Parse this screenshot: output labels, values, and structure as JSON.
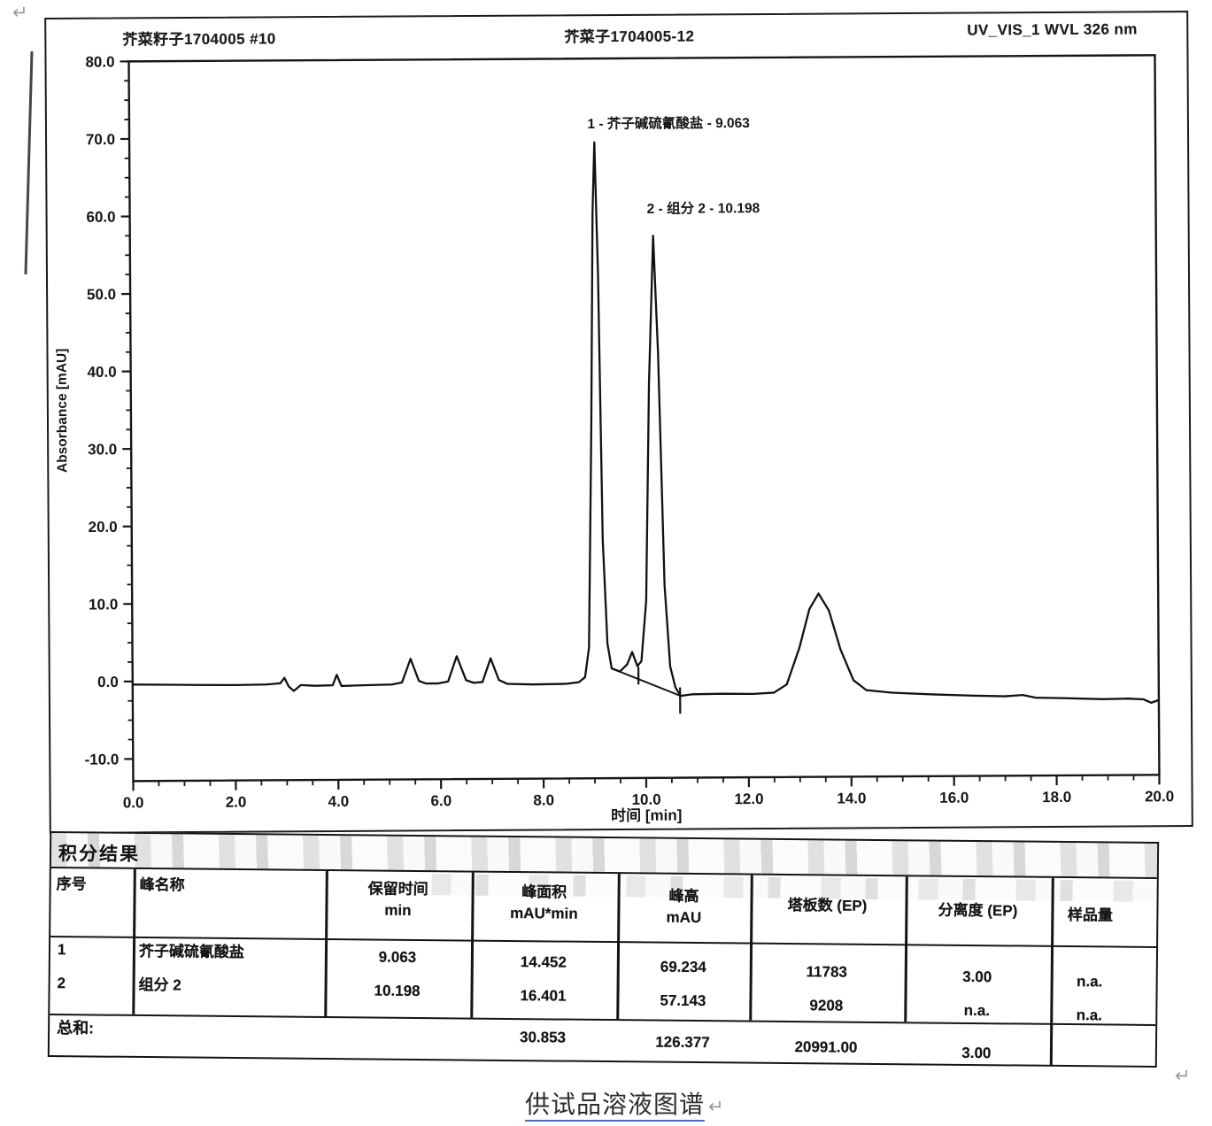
{
  "page": {
    "return_mark": "↵",
    "caption": "供试品溶液图谱"
  },
  "chart": {
    "header_left": "芥菜籽子1704005 #10",
    "header_center": "芥菜子1704005-12",
    "header_right": "UV_VIS_1 WVL 326 nm"
  },
  "chart_data": {
    "type": "line",
    "title": "供试品溶液图谱",
    "xlabel": "时间 [min]",
    "ylabel": "Absorbance [mAU]",
    "xlim": [
      0,
      20
    ],
    "ylim": [
      -10,
      80
    ],
    "x_minor_step": 0.5,
    "y_minor_step": 2.5,
    "x_ticks": [
      {
        "v": 0,
        "label": "0.0"
      },
      {
        "v": 2,
        "label": "2.0"
      },
      {
        "v": 4,
        "label": "4.0"
      },
      {
        "v": 6,
        "label": "6.0"
      },
      {
        "v": 8,
        "label": "8.0"
      },
      {
        "v": 10,
        "label": "10.0"
      },
      {
        "v": 12,
        "label": "12.0"
      },
      {
        "v": 14,
        "label": "14.0"
      },
      {
        "v": 16,
        "label": "16.0"
      },
      {
        "v": 18,
        "label": "18.0"
      },
      {
        "v": 20,
        "label": "20.0"
      }
    ],
    "y_ticks": [
      {
        "v": 80,
        "label": "80.0"
      },
      {
        "v": 70,
        "label": "70.0"
      },
      {
        "v": 60,
        "label": "60.0"
      },
      {
        "v": 50,
        "label": "50.0"
      },
      {
        "v": 40,
        "label": "40.0"
      },
      {
        "v": 30,
        "label": "30.0"
      },
      {
        "v": 20,
        "label": "20.0"
      },
      {
        "v": 10,
        "label": "10.0"
      },
      {
        "v": 0,
        "label": "0.0"
      },
      {
        "v": -10,
        "label": "-10.0"
      }
    ],
    "peaks": [
      {
        "text": "1 - 芥子碱硫氰酸盐 - 9.063",
        "t": 9.063,
        "height_mau": 69.234,
        "label_t": 8.93,
        "label_mau": 71.0
      },
      {
        "text": "2 - 组分 2 - 10.198",
        "t": 10.198,
        "height_mau": 57.143,
        "label_t": 10.08,
        "label_mau": 60.0
      }
    ],
    "integration": {
      "baseline": [
        [
          9.34,
          1.3
        ],
        [
          10.68,
          -2.3
        ]
      ],
      "markers": [
        {
          "t": 9.86,
          "v1": 1.5,
          "v2": -0.8
        },
        {
          "t": 10.67,
          "v1": -1.2,
          "v2": -4.6
        }
      ]
    },
    "trace": [
      [
        0,
        -0.4
      ],
      [
        0.6,
        -0.45
      ],
      [
        1.2,
        -0.5
      ],
      [
        2.0,
        -0.55
      ],
      [
        2.6,
        -0.5
      ],
      [
        2.88,
        -0.35
      ],
      [
        2.96,
        0.35
      ],
      [
        3.04,
        -0.75
      ],
      [
        3.14,
        -1.35
      ],
      [
        3.28,
        -0.6
      ],
      [
        3.55,
        -0.7
      ],
      [
        3.9,
        -0.65
      ],
      [
        3.98,
        0.7
      ],
      [
        4.07,
        -0.75
      ],
      [
        4.35,
        -0.7
      ],
      [
        5.05,
        -0.6
      ],
      [
        5.25,
        -0.35
      ],
      [
        5.42,
        2.7
      ],
      [
        5.58,
        -0.15
      ],
      [
        5.72,
        -0.5
      ],
      [
        5.95,
        -0.5
      ],
      [
        6.15,
        -0.25
      ],
      [
        6.32,
        3.0
      ],
      [
        6.5,
        -0.1
      ],
      [
        6.65,
        -0.45
      ],
      [
        6.82,
        -0.35
      ],
      [
        6.98,
        2.7
      ],
      [
        7.14,
        -0.1
      ],
      [
        7.3,
        -0.6
      ],
      [
        7.8,
        -0.7
      ],
      [
        8.45,
        -0.65
      ],
      [
        8.7,
        -0.45
      ],
      [
        8.82,
        0.2
      ],
      [
        8.9,
        4
      ],
      [
        8.97,
        32
      ],
      [
        9.02,
        60
      ],
      [
        9.063,
        69.2
      ],
      [
        9.12,
        52
      ],
      [
        9.18,
        18
      ],
      [
        9.26,
        4.5
      ],
      [
        9.34,
        1.3
      ],
      [
        9.5,
        0.9
      ],
      [
        9.64,
        1.8
      ],
      [
        9.74,
        3.4
      ],
      [
        9.84,
        1.6
      ],
      [
        9.92,
        2.2
      ],
      [
        10.02,
        10
      ],
      [
        10.1,
        38
      ],
      [
        10.198,
        57.1
      ],
      [
        10.28,
        42
      ],
      [
        10.38,
        12
      ],
      [
        10.48,
        1.5
      ],
      [
        10.58,
        -1.2
      ],
      [
        10.68,
        -2.3
      ],
      [
        10.9,
        -2.1
      ],
      [
        11.5,
        -2.05
      ],
      [
        12.1,
        -2.1
      ],
      [
        12.5,
        -1.95
      ],
      [
        12.75,
        -0.9
      ],
      [
        13.0,
        3.8
      ],
      [
        13.2,
        8.8
      ],
      [
        13.38,
        10.8
      ],
      [
        13.58,
        8.6
      ],
      [
        13.8,
        3.6
      ],
      [
        14.05,
        -0.4
      ],
      [
        14.3,
        -1.7
      ],
      [
        14.8,
        -2.05
      ],
      [
        15.6,
        -2.3
      ],
      [
        16.4,
        -2.5
      ],
      [
        17.0,
        -2.6
      ],
      [
        17.35,
        -2.45
      ],
      [
        17.6,
        -2.8
      ],
      [
        18.2,
        -2.9
      ],
      [
        18.9,
        -3.05
      ],
      [
        19.4,
        -3.0
      ],
      [
        19.7,
        -3.1
      ],
      [
        19.85,
        -3.55
      ],
      [
        20,
        -3.2
      ]
    ]
  },
  "table": {
    "title": "积分结果",
    "columns": [
      {
        "label": "序号",
        "unit": ""
      },
      {
        "label": "峰名称",
        "unit": ""
      },
      {
        "label": "保留时间",
        "unit": "min"
      },
      {
        "label": "峰面积",
        "unit": "mAU*min"
      },
      {
        "label": "峰高",
        "unit": "mAU"
      },
      {
        "label": "塔板数 (EP)",
        "unit": ""
      },
      {
        "label": "分离度 (EP)",
        "unit": ""
      },
      {
        "label": "样品量",
        "unit": ""
      }
    ],
    "rows": [
      {
        "no": "1",
        "name": "芥子碱硫氰酸盐",
        "rt": "9.063",
        "area": "14.452",
        "height": "69.234",
        "plates": "11783",
        "res": "3.00",
        "amount": "n.a."
      },
      {
        "no": "2",
        "name": "组分 2",
        "rt": "10.198",
        "area": "16.401",
        "height": "57.143",
        "plates": "9208",
        "res": "n.a.",
        "amount": "n.a."
      }
    ],
    "sum": {
      "label": "总和:",
      "area": "30.853",
      "height": "126.377",
      "plates": "20991.00",
      "res": "3.00"
    }
  }
}
